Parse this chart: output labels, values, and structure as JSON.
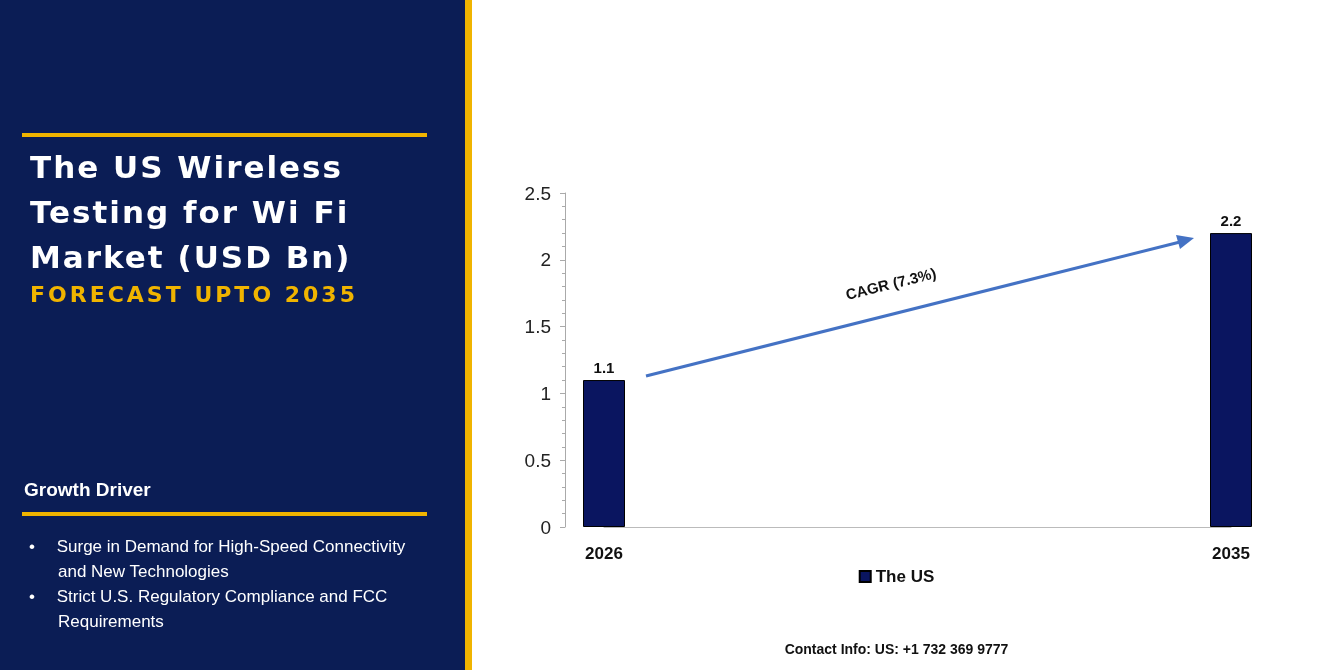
{
  "chart_data": {
    "type": "bar",
    "title": "The US Wireless Testing for Wi Fi Market (USD Bn)",
    "subtitle": "FORECAST UPTO 2035",
    "categories": [
      "2026",
      "2035"
    ],
    "series": [
      {
        "name": "The US",
        "color": "#0a1560",
        "values": [
          1.1,
          2.2
        ]
      }
    ],
    "ylim": [
      0,
      2.5
    ],
    "yticks": [
      0,
      0.5,
      1,
      1.5,
      2,
      2.5
    ],
    "grid": false,
    "legend": "bottom",
    "data_labels": true,
    "annotations": [
      "CAGR (7.3%)",
      "Growth Driver",
      "• Surge in Demand for High-Speed Connectivity and New Technologies",
      "• Strict U.S. Regulatory Compliance and FCC Requirements",
      "Contact Info: US: +1 732 369 9777"
    ]
  }
}
